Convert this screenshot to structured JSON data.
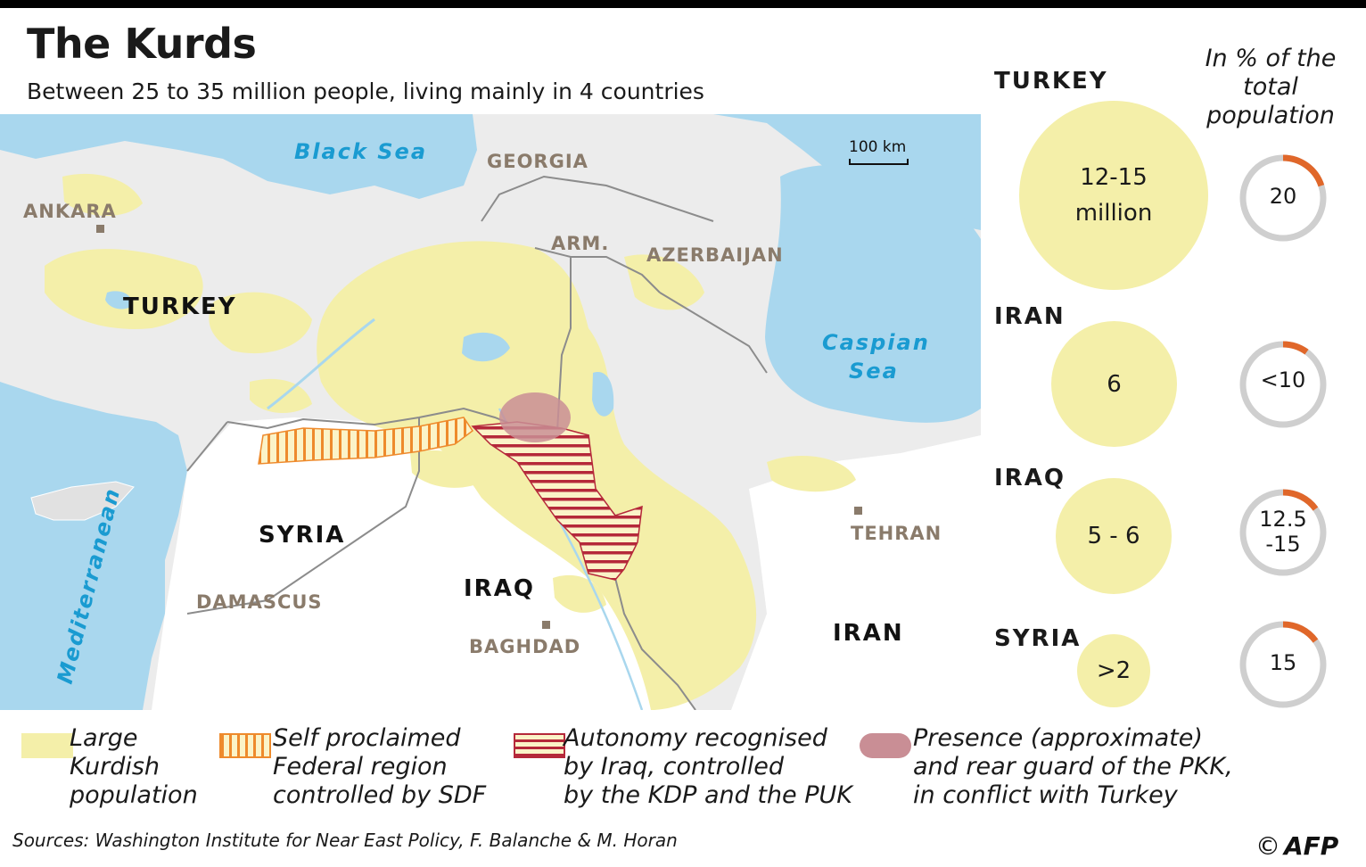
{
  "title": "The Kurds",
  "subtitle": "Between 25 to 35 million people, living mainly in 4 countries",
  "map": {
    "seas": {
      "black_sea": "Black Sea",
      "caspian_line1": "Caspian",
      "caspian_line2": "Sea",
      "mediterranean": "Mediterranean"
    },
    "countries": {
      "turkey": "TURKEY",
      "syria": "SYRIA",
      "iraq": "IRAQ",
      "iran": "IRAN",
      "georgia": "GEORGIA",
      "armenia": "ARM.",
      "azerbaijan": "AZERBAIJAN"
    },
    "cities": {
      "ankara": "ANKARA",
      "damascus": "DAMASCUS",
      "baghdad": "BAGHDAD",
      "tehran": "TEHRAN"
    },
    "scale": "100 km"
  },
  "population": {
    "header": [
      "In % of the",
      "total",
      "population"
    ],
    "rows": [
      {
        "country": "TURKEY",
        "count_line1": "12-15",
        "count_line2": "million",
        "pct_line1": "20",
        "pct_line2": "",
        "pct_value": 20
      },
      {
        "country": "IRAN",
        "count_line1": "6",
        "count_line2": "",
        "pct_line1": "<10",
        "pct_line2": "",
        "pct_value": 10
      },
      {
        "country": "IRAQ",
        "count_line1": "5 - 6",
        "count_line2": "",
        "pct_line1": "12.5",
        "pct_line2": "-15",
        "pct_value": 15
      },
      {
        "country": "SYRIA",
        "count_line1": ">2",
        "count_line2": "",
        "pct_line1": "15",
        "pct_line2": "",
        "pct_value": 15
      }
    ]
  },
  "legend": [
    {
      "lines": [
        "Large",
        "Kurdish",
        "population"
      ]
    },
    {
      "lines": [
        "Self proclaimed",
        "Federal region",
        "controlled by SDF"
      ]
    },
    {
      "lines": [
        "Autonomy recognised",
        "by Iraq, controlled",
        "by the KDP and the PUK"
      ]
    },
    {
      "lines": [
        "Presence (approximate)",
        "and rear guard of the PKK,",
        "in conflict with Turkey"
      ]
    }
  ],
  "sources": "Sources: Washington Institute for Near East Policy, F. Balanche & M. Horan",
  "credit": {
    "symbol": "©",
    "name": "AFP"
  },
  "colors": {
    "sea": "#a9d7ee",
    "land": "#ececec",
    "kurdish": "#f4efa9",
    "sdf": "#ee8a2c",
    "kdp": "#b5283a",
    "pkk": "#c98e95",
    "ring": "#cfcfcf",
    "ring_accent": "#e0672a"
  }
}
